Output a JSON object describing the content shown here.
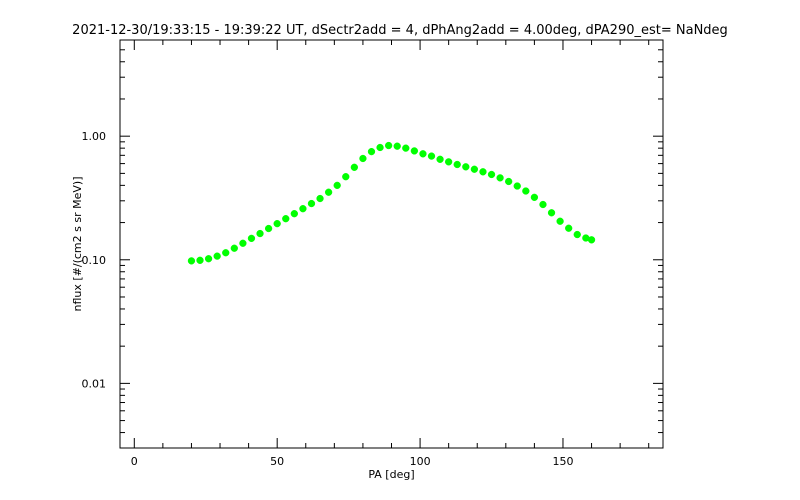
{
  "chart_data": {
    "type": "scatter",
    "title": "2021-12-30/19:33:15 - 19:39:22 UT, dSectr2add = 4, dPhAng2add = 4.00deg, dPA290_est=    NaNdeg",
    "xlabel": "PA [deg]",
    "ylabel": "nflux [#/(cm2 s sr MeV)]",
    "xlim": [
      -5,
      185
    ],
    "ylim": [
      0.003,
      6.0
    ],
    "yscale": "log",
    "grid": false,
    "x_ticks": [
      {
        "value": 0,
        "label": "0"
      },
      {
        "value": 50,
        "label": "50"
      },
      {
        "value": 100,
        "label": "100"
      },
      {
        "value": 150,
        "label": "150"
      }
    ],
    "y_ticks": [
      {
        "value": 0.01,
        "label": "0.01"
      },
      {
        "value": 0.1,
        "label": "0.10"
      },
      {
        "value": 1.0,
        "label": "1.00"
      }
    ],
    "series": [
      {
        "color": "#00ff00",
        "x": [
          20,
          23,
          26,
          29,
          32,
          35,
          38,
          41,
          44,
          47,
          50,
          53,
          56,
          59,
          62,
          65,
          68,
          71,
          74,
          77,
          80,
          83,
          86,
          89,
          92,
          95,
          98,
          101,
          104,
          107,
          110,
          113,
          116,
          119,
          122,
          125,
          128,
          131,
          134,
          137,
          140,
          143,
          146,
          149,
          152,
          155,
          158,
          160
        ],
        "y": [
          0.098,
          0.099,
          0.102,
          0.107,
          0.114,
          0.124,
          0.136,
          0.149,
          0.163,
          0.179,
          0.196,
          0.215,
          0.236,
          0.259,
          0.285,
          0.313,
          0.352,
          0.4,
          0.47,
          0.56,
          0.66,
          0.75,
          0.81,
          0.84,
          0.83,
          0.8,
          0.76,
          0.72,
          0.69,
          0.65,
          0.62,
          0.59,
          0.565,
          0.54,
          0.515,
          0.49,
          0.46,
          0.43,
          0.395,
          0.36,
          0.32,
          0.28,
          0.24,
          0.205,
          0.18,
          0.16,
          0.15,
          0.145
        ]
      }
    ]
  }
}
